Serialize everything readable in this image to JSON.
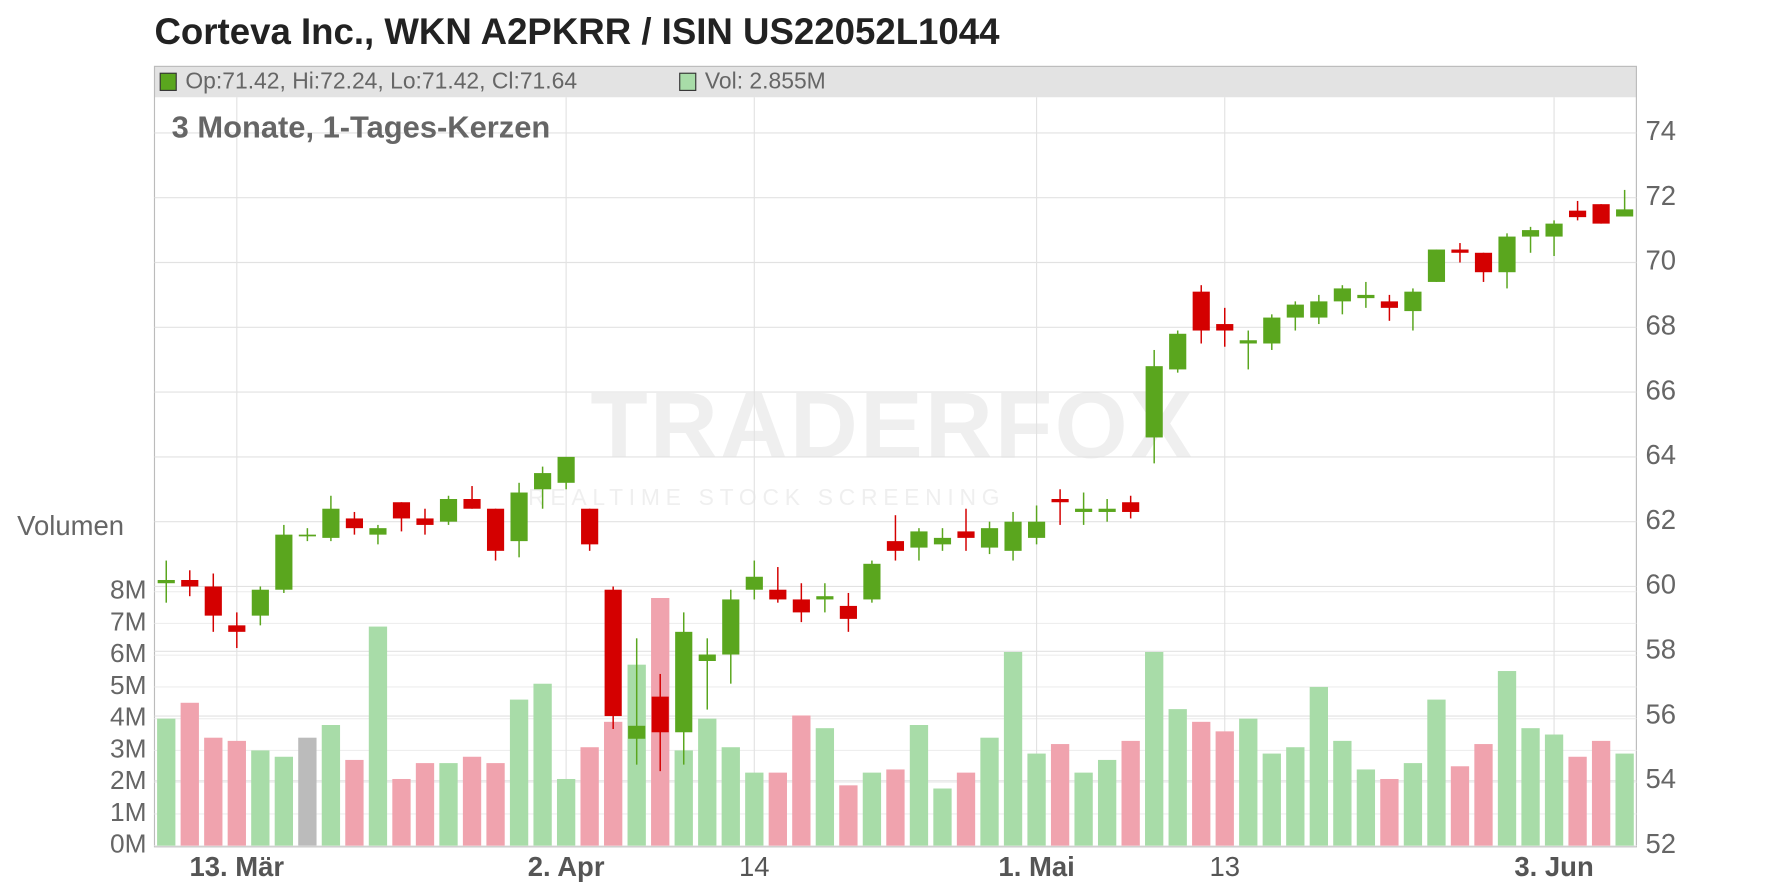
{
  "chart_data": {
    "type": "candlestick",
    "title": "Corteva Inc., WKN A2PKRR / ISIN US22052L1044",
    "subtitle": "3 Monate, 1-Tages-Kerzen",
    "legend_ohlc": "Op:71.42, Hi:72.24, Lo:71.42, Cl:71.64",
    "legend_volume": "Vol: 2.855M",
    "volume_axis_label": "Volumen",
    "watermark": "TRADERFOX",
    "watermark_sub": "REALTIME STOCK SCREENING",
    "categories": [
      null,
      null,
      null,
      "13. Mär",
      null,
      null,
      null,
      null,
      null,
      null,
      null,
      null,
      null,
      null,
      null,
      null,
      null,
      "2. Apr",
      null,
      null,
      null,
      null,
      null,
      null,
      null,
      "14",
      null,
      null,
      null,
      null,
      null,
      null,
      null,
      null,
      null,
      null,
      null,
      "1. Mai",
      null,
      null,
      null,
      null,
      null,
      null,
      null,
      "13",
      null,
      null,
      null,
      null,
      null,
      null,
      null,
      null,
      null,
      null,
      null,
      null,
      null,
      "3. Jun",
      null,
      null,
      null
    ],
    "open": [
      60.1,
      60.2,
      60.0,
      58.8,
      59.1,
      59.9,
      61.6,
      61.5,
      62.1,
      61.6,
      62.6,
      62.1,
      62.0,
      62.7,
      62.4,
      61.4,
      63.0,
      63.2,
      62.4,
      59.9,
      55.3,
      56.6,
      55.5,
      57.7,
      57.9,
      59.9,
      59.9,
      59.6,
      59.6,
      59.4,
      59.6,
      61.4,
      61.2,
      61.3,
      61.7,
      61.2,
      61.1,
      61.5,
      62.7,
      62.3,
      62.3,
      62.6,
      64.6,
      66.7,
      69.1,
      68.1,
      67.5,
      67.5,
      68.3,
      68.3,
      68.8,
      68.9,
      68.8,
      68.5,
      69.4,
      70.4,
      70.3,
      69.7,
      70.8,
      70.8,
      71.6,
      71.8,
      71.42
    ],
    "high": [
      60.8,
      60.5,
      60.4,
      59.2,
      60.0,
      61.9,
      61.8,
      62.8,
      62.3,
      61.9,
      62.6,
      62.4,
      62.8,
      63.1,
      62.4,
      63.2,
      63.7,
      64.0,
      62.4,
      60.0,
      58.4,
      57.3,
      59.2,
      58.4,
      59.9,
      60.8,
      60.6,
      60.1,
      60.1,
      59.8,
      60.8,
      62.2,
      61.8,
      61.8,
      62.4,
      62.0,
      62.3,
      62.5,
      63.0,
      62.9,
      62.7,
      62.8,
      67.3,
      67.9,
      69.3,
      68.6,
      67.9,
      68.4,
      68.8,
      69.0,
      69.3,
      69.4,
      69.0,
      69.2,
      70.4,
      70.6,
      70.3,
      70.9,
      71.1,
      71.3,
      71.9,
      71.8,
      72.24
    ],
    "low": [
      59.5,
      59.7,
      58.6,
      58.1,
      58.8,
      59.8,
      61.4,
      61.4,
      61.6,
      61.3,
      61.7,
      61.6,
      61.9,
      62.4,
      60.8,
      60.9,
      62.4,
      63.0,
      61.1,
      55.6,
      54.5,
      54.3,
      54.5,
      56.2,
      57.0,
      59.6,
      59.5,
      58.9,
      59.2,
      58.6,
      59.5,
      60.8,
      60.8,
      61.1,
      61.1,
      61.0,
      60.8,
      61.3,
      61.9,
      61.9,
      62.0,
      62.1,
      63.8,
      66.6,
      67.5,
      67.4,
      66.7,
      67.3,
      67.9,
      68.1,
      68.4,
      68.6,
      68.2,
      67.9,
      69.4,
      70.0,
      69.4,
      69.2,
      70.3,
      70.2,
      71.3,
      71.2,
      71.42
    ],
    "close": [
      60.2,
      60.0,
      59.1,
      58.6,
      59.9,
      61.6,
      61.6,
      62.4,
      61.8,
      61.8,
      62.1,
      61.9,
      62.7,
      62.4,
      61.1,
      62.9,
      63.5,
      64.0,
      61.3,
      56.0,
      55.7,
      55.5,
      58.6,
      57.9,
      59.6,
      60.3,
      59.6,
      59.2,
      59.7,
      59.0,
      60.7,
      61.1,
      61.7,
      61.5,
      61.5,
      61.8,
      62.0,
      62.0,
      62.6,
      62.4,
      62.4,
      62.3,
      66.8,
      67.8,
      67.9,
      67.9,
      67.6,
      68.3,
      68.7,
      68.8,
      69.2,
      69.0,
      68.6,
      69.1,
      70.4,
      70.3,
      69.7,
      70.8,
      71.0,
      71.2,
      71.4,
      71.2,
      71.64
    ],
    "volume": [
      4000000,
      4500000,
      3400000,
      3300000,
      3000000,
      2800000,
      3400000,
      3800000,
      2700000,
      6900000,
      2100000,
      2600000,
      2600000,
      2800000,
      2600000,
      4600000,
      5100000,
      2100000,
      3100000,
      3900000,
      5700000,
      7800000,
      3000000,
      4000000,
      3100000,
      2300000,
      2300000,
      4100000,
      3700000,
      1900000,
      2300000,
      2400000,
      3800000,
      1800000,
      2300000,
      3400000,
      6100000,
      2900000,
      3200000,
      2300000,
      2700000,
      3300000,
      6100000,
      4300000,
      3900000,
      3600000,
      4000000,
      2900000,
      3100000,
      5000000,
      3300000,
      2400000,
      2100000,
      2600000,
      4600000,
      2500000,
      3200000,
      5500000,
      3700000,
      3500000,
      2800000,
      3300000,
      2900000
    ],
    "up_color": "#5aa61e",
    "down_color": "#d40000",
    "volume_up_color": "#a8dca8",
    "volume_down_color": "#f0a3ae",
    "volume_flat_color": "#bbbbbb",
    "ylim": [
      52,
      75.1
    ],
    "yticks": [
      52,
      54,
      56,
      58,
      60,
      62,
      64,
      66,
      68,
      70,
      72,
      74
    ],
    "y2lim": [
      0,
      23570000
    ],
    "y2ticks": [
      {
        "value": 0,
        "label": "0M"
      },
      {
        "value": 1000000,
        "label": "1M"
      },
      {
        "value": 2000000,
        "label": "2M"
      },
      {
        "value": 3000000,
        "label": "3M"
      },
      {
        "value": 4000000,
        "label": "4M"
      },
      {
        "value": 5000000,
        "label": "5M"
      },
      {
        "value": 6000000,
        "label": "6M"
      },
      {
        "value": 7000000,
        "label": "7M"
      },
      {
        "value": 8000000,
        "label": "8M"
      }
    ],
    "grid": true
  }
}
